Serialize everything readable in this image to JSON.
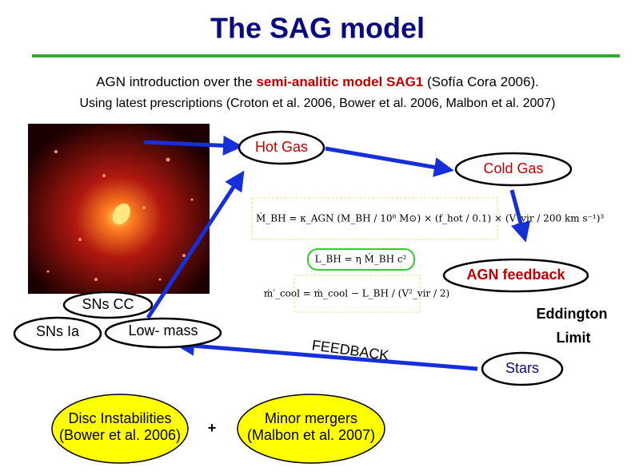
{
  "header": {
    "title": "The SAG model"
  },
  "intro": {
    "line1": [
      "AGN introduction over the ",
      "semi-analitic model SAG1",
      " (Sofía Cora 2006)."
    ],
    "line2": "Using latest prescriptions (Croton et al. 2006, Bower et al. 2006, Malbon et al. 2007)"
  },
  "nodes": {
    "hot_gas": "Hot Gas",
    "cold_gas": "Cold Gas",
    "agn_feedback": "AGN feedback",
    "sns_cc": "SNs CC",
    "sns_ia": "SNs Ia",
    "low_mass": "Low- mass",
    "stars": "Stars",
    "eddington": "Eddington",
    "limit": "Limit",
    "feedback": "FEEDBACK",
    "disc": [
      "Disc Instabilities",
      "(Bower et al. 2006)"
    ],
    "plus": "+",
    "mergers": [
      "Minor mergers",
      "(Malbon et al. 2007)"
    ]
  },
  "equations": [
    "Ṁ_BH = κ_AGN (M_BH / 10⁸ M⊙) × (f_hot / 0.1) × (V_vir / 200 km s⁻¹)³",
    "L_BH = η Ṁ_BH c²",
    "ṁ′_cool = ṁ_cool − L_BH / (V²_vir / 2)"
  ]
}
